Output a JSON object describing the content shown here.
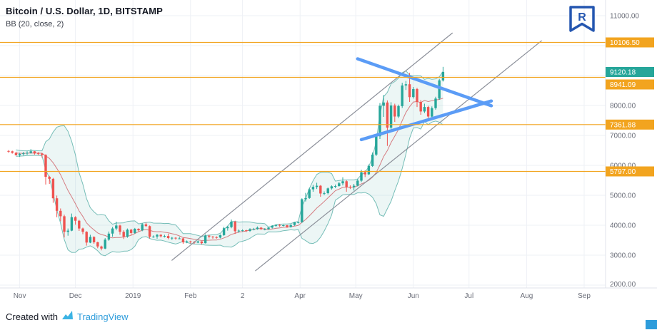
{
  "header": {
    "symbol_title": "Bitcoin / U.S. Dollar, 1D, BITSTAMP",
    "indicator_label": "BB (20, close, 2)"
  },
  "footer": {
    "created_with": "Created with",
    "brand": "TradingView"
  },
  "colors": {
    "up": "#26a69a",
    "down": "#ef5350",
    "band_line": "#5fb3ac",
    "band_fill": "rgba(96,179,172,0.12)",
    "basis_line": "#cf5f65",
    "level_line": "#f2a41f",
    "level_label_bg": "#f2a41f",
    "last_price_bg": "#26a69a",
    "channel_line": "#8b8f99",
    "pennant_line": "#5b9cf6",
    "grid": "#eef1f6",
    "axis_text": "#6a6d78",
    "axis_border": "#e0e3eb",
    "title_text": "#131722",
    "brand_blue": "#2d9cdb",
    "logo_blue": "#2456b0"
  },
  "chart_data": {
    "type": "candlestick",
    "symbol": "Bitcoin / U.S. Dollar",
    "exchange": "BITSTAMP",
    "interval": "1D",
    "indicator": {
      "name": "Bollinger Bands",
      "period": 20,
      "source": "close",
      "stdev": 2
    },
    "start_date": "2018-10-26",
    "candle_step_days": 2,
    "end_date": "2019-06-17",
    "y_axis": {
      "min": 2000,
      "max": 11000,
      "ticks": [
        11000,
        10000,
        9000,
        8000,
        7000,
        6000,
        5000,
        4000,
        3000,
        2000
      ],
      "visible_tick_labels": [
        "11000.00",
        "8000.00",
        "7000.00",
        "6000.00",
        "5000.00",
        "4000.00",
        "3000.00",
        "2000.00"
      ]
    },
    "x_ticks": [
      {
        "label": "Nov",
        "index": 3
      },
      {
        "label": "Dec",
        "index": 18
      },
      {
        "label": "2019",
        "index": 33.5
      },
      {
        "label": "Feb",
        "index": 49
      },
      {
        "label": "2",
        "index": 63
      },
      {
        "label": "Apr",
        "index": 78.5
      },
      {
        "label": "May",
        "index": 93.5
      },
      {
        "label": "Jun",
        "index": 109
      },
      {
        "label": "Jul",
        "index": 124
      },
      {
        "label": "Aug",
        "index": 139.5
      },
      {
        "label": "Sep",
        "index": 155
      }
    ],
    "price_levels": [
      {
        "price": 10106.5,
        "label": "10106.50"
      },
      {
        "price": 8941.09,
        "label": "8941.09",
        "label_dy": 10
      },
      {
        "price": 7361.88,
        "label": "7361.88"
      },
      {
        "price": 5797.0,
        "label": "5797.00"
      }
    ],
    "last_price": {
      "value": 9120.18,
      "label": "9120.18"
    },
    "trend_lines": [
      {
        "name": "ascending-channel-line-1",
        "color": "#8b8f99",
        "width": 1.2,
        "from": {
          "index": 44,
          "price": 2830
        },
        "to": {
          "index": 119.5,
          "price": 10420
        }
      },
      {
        "name": "ascending-channel-line-2",
        "color": "#8b8f99",
        "width": 1.2,
        "from": {
          "index": 66.5,
          "price": 2480
        },
        "to": {
          "index": 143.5,
          "price": 10160
        }
      },
      {
        "name": "pennant-upper-line",
        "color": "#5b9cf6",
        "width": 4.5,
        "from": {
          "index": 94,
          "price": 9560
        },
        "to": {
          "index": 130,
          "price": 7990
        }
      },
      {
        "name": "pennant-lower-line",
        "color": "#5b9cf6",
        "width": 4.5,
        "from": {
          "index": 95,
          "price": 6860
        },
        "to": {
          "index": 130,
          "price": 8150
        }
      }
    ],
    "candles": [
      [
        6480,
        6510,
        6420,
        6470
      ],
      [
        6470,
        6490,
        6390,
        6420
      ],
      [
        6420,
        6450,
        6330,
        6340
      ],
      [
        6340,
        6420,
        6280,
        6380
      ],
      [
        6380,
        6450,
        6330,
        6400
      ],
      [
        6400,
        6470,
        6350,
        6420
      ],
      [
        6420,
        6540,
        6390,
        6470
      ],
      [
        6470,
        6480,
        6360,
        6400
      ],
      [
        6400,
        6440,
        6350,
        6390
      ],
      [
        6390,
        6420,
        6260,
        6350
      ],
      [
        6350,
        6370,
        5360,
        5620
      ],
      [
        5620,
        5650,
        5380,
        5550
      ],
      [
        5550,
        5580,
        4750,
        4900
      ],
      [
        4900,
        4990,
        4270,
        4480
      ],
      [
        4480,
        4560,
        4130,
        4300
      ],
      [
        4300,
        4350,
        3590,
        3780
      ],
      [
        3780,
        3890,
        3650,
        3820
      ],
      [
        3820,
        4390,
        3800,
        4270
      ],
      [
        4270,
        4300,
        4020,
        4150
      ],
      [
        4150,
        4180,
        3810,
        3890
      ],
      [
        3890,
        3920,
        3700,
        3780
      ],
      [
        3780,
        3800,
        3320,
        3420
      ],
      [
        3420,
        3680,
        3400,
        3610
      ],
      [
        3610,
        3630,
        3380,
        3430
      ],
      [
        3430,
        3450,
        3230,
        3290
      ],
      [
        3290,
        3320,
        3160,
        3220
      ],
      [
        3220,
        3570,
        3200,
        3520
      ],
      [
        3520,
        3790,
        3480,
        3720
      ],
      [
        3720,
        3940,
        3620,
        3890
      ],
      [
        3890,
        4120,
        3830,
        3990
      ],
      [
        3990,
        4020,
        3680,
        3780
      ],
      [
        3780,
        3830,
        3540,
        3620
      ],
      [
        3620,
        3890,
        3580,
        3850
      ],
      [
        3850,
        3880,
        3680,
        3740
      ],
      [
        3740,
        3910,
        3710,
        3880
      ],
      [
        3880,
        3900,
        3790,
        3830
      ],
      [
        3830,
        4070,
        3800,
        4030
      ],
      [
        4030,
        4090,
        3940,
        3970
      ],
      [
        3970,
        3990,
        3560,
        3620
      ],
      [
        3620,
        3660,
        3580,
        3620
      ],
      [
        3620,
        3710,
        3550,
        3680
      ],
      [
        3680,
        3700,
        3590,
        3630
      ],
      [
        3630,
        3680,
        3590,
        3640
      ],
      [
        3640,
        3720,
        3530,
        3570
      ],
      [
        3570,
        3610,
        3510,
        3580
      ],
      [
        3580,
        3600,
        3520,
        3560
      ],
      [
        3560,
        3610,
        3530,
        3560
      ],
      [
        3560,
        3580,
        3380,
        3430
      ],
      [
        3430,
        3490,
        3400,
        3460
      ],
      [
        3460,
        3480,
        3390,
        3440
      ],
      [
        3440,
        3470,
        3380,
        3420
      ],
      [
        3420,
        3490,
        3400,
        3460
      ],
      [
        3460,
        3470,
        3360,
        3400
      ],
      [
        3400,
        3690,
        3390,
        3650
      ],
      [
        3650,
        3680,
        3560,
        3620
      ],
      [
        3620,
        3640,
        3550,
        3600
      ],
      [
        3600,
        3630,
        3550,
        3590
      ],
      [
        3590,
        3690,
        3560,
        3670
      ],
      [
        3670,
        3950,
        3640,
        3900
      ],
      [
        3900,
        3980,
        3820,
        3940
      ],
      [
        3940,
        4190,
        3900,
        4120
      ],
      [
        4120,
        4150,
        3710,
        3800
      ],
      [
        3800,
        3860,
        3750,
        3820
      ],
      [
        3820,
        3860,
        3790,
        3830
      ],
      [
        3830,
        3850,
        3770,
        3810
      ],
      [
        3810,
        3900,
        3780,
        3870
      ],
      [
        3870,
        3910,
        3830,
        3870
      ],
      [
        3870,
        3960,
        3850,
        3920
      ],
      [
        3920,
        3940,
        3840,
        3870
      ],
      [
        3870,
        3900,
        3830,
        3870
      ],
      [
        3870,
        3940,
        3850,
        3920
      ],
      [
        3920,
        4000,
        3890,
        3980
      ],
      [
        3980,
        4030,
        3940,
        4010
      ],
      [
        4010,
        4040,
        3950,
        3990
      ],
      [
        3990,
        4020,
        3960,
        4000
      ],
      [
        4000,
        4010,
        3910,
        3940
      ],
      [
        3940,
        4030,
        3920,
        4010
      ],
      [
        4010,
        4110,
        3980,
        4100
      ],
      [
        4100,
        4120,
        4060,
        4100
      ],
      [
        4100,
        4900,
        4080,
        4870
      ],
      [
        4870,
        5080,
        4790,
        4910
      ],
      [
        4910,
        5250,
        4880,
        5200
      ],
      [
        5200,
        5350,
        5120,
        5280
      ],
      [
        5280,
        5420,
        5210,
        5320
      ],
      [
        5320,
        5340,
        4950,
        5060
      ],
      [
        5060,
        5130,
        5010,
        5070
      ],
      [
        5070,
        5260,
        5030,
        5230
      ],
      [
        5230,
        5330,
        5190,
        5300
      ],
      [
        5300,
        5360,
        5240,
        5310
      ],
      [
        5310,
        5450,
        5290,
        5400
      ],
      [
        5400,
        5600,
        5330,
        5470
      ],
      [
        5470,
        5500,
        5120,
        5280
      ],
      [
        5280,
        5330,
        5210,
        5270
      ],
      [
        5270,
        5380,
        5160,
        5320
      ],
      [
        5320,
        5550,
        5300,
        5490
      ],
      [
        5490,
        5850,
        5440,
        5770
      ],
      [
        5770,
        5830,
        5610,
        5700
      ],
      [
        5700,
        6030,
        5680,
        5980
      ],
      [
        5980,
        6430,
        5950,
        6360
      ],
      [
        6360,
        7050,
        6310,
        6970
      ],
      [
        6970,
        8080,
        6880,
        7990
      ],
      [
        7990,
        8350,
        7620,
        8100
      ],
      [
        8100,
        8170,
        6650,
        7260
      ],
      [
        7260,
        8110,
        7210,
        8000
      ],
      [
        8000,
        8060,
        7450,
        7630
      ],
      [
        7630,
        8030,
        7580,
        7980
      ],
      [
        7980,
        8760,
        7920,
        8670
      ],
      [
        8670,
        8820,
        8520,
        8710
      ],
      [
        8710,
        9090,
        8120,
        8280
      ],
      [
        8280,
        8620,
        8230,
        8550
      ],
      [
        8550,
        8590,
        7950,
        8120
      ],
      [
        8120,
        8180,
        7690,
        7800
      ],
      [
        7800,
        8060,
        7750,
        7950
      ],
      [
        7950,
        7990,
        7560,
        7630
      ],
      [
        7630,
        7970,
        7590,
        7910
      ],
      [
        7910,
        8290,
        7860,
        8230
      ],
      [
        8230,
        8890,
        8190,
        8840
      ],
      [
        8840,
        9290,
        8800,
        9120.18
      ]
    ]
  }
}
